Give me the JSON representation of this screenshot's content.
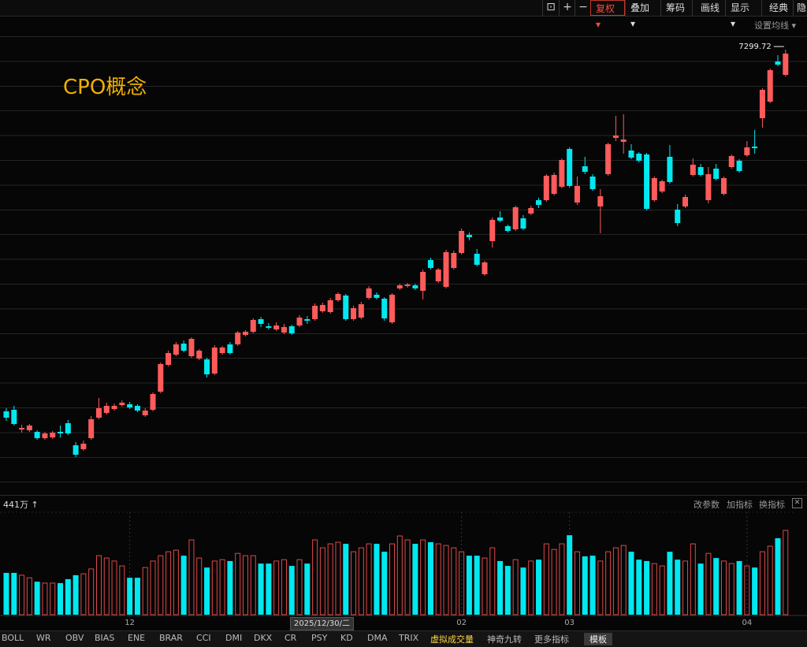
{
  "toolbar": {
    "buttons": [
      "复权",
      "叠加",
      "筹码",
      "画线",
      "显示",
      "经典",
      "隐"
    ],
    "ma_settings": "设置均线"
  },
  "chart_data": [
    {
      "type": "candlestick",
      "title": "CPO概念",
      "cursor_date": "2025/12/30/二",
      "categories": [
        null,
        null,
        null,
        null,
        null,
        null,
        null,
        null,
        null,
        null,
        null,
        null,
        null,
        null,
        null,
        null,
        "12",
        null,
        null,
        null,
        null,
        null,
        null,
        null,
        null,
        null,
        null,
        null,
        null,
        null,
        null,
        null,
        null,
        null,
        null,
        null,
        null,
        null,
        null,
        null,
        null,
        null,
        null,
        null,
        null,
        null,
        null,
        null,
        null,
        null,
        null,
        null,
        null,
        null,
        null,
        null,
        null,
        null,
        null,
        "02",
        null,
        null,
        null,
        null,
        null,
        null,
        null,
        null,
        null,
        null,
        null,
        null,
        null,
        "03",
        null,
        null,
        null,
        null,
        null,
        null,
        null,
        null,
        null,
        null,
        null,
        null,
        null,
        null,
        null,
        null,
        null,
        null,
        null,
        null,
        null,
        null,
        "04",
        null,
        null,
        null,
        null,
        null
      ],
      "open": [
        3628,
        3644,
        3444,
        3436,
        3420,
        3356,
        3364,
        3420,
        3508,
        3284,
        3244,
        3356,
        3564,
        3612,
        3652,
        3692,
        3700,
        3684,
        3588,
        3644,
        3828,
        4100,
        4204,
        4316,
        4188,
        4164,
        4156,
        4012,
        4220,
        4308,
        4308,
        4404,
        4436,
        4564,
        4492,
        4460,
        4428,
        4492,
        4500,
        4564,
        4564,
        4644,
        4636,
        4756,
        4804,
        4564,
        4580,
        4780,
        4812,
        4772,
        4532,
        4876,
        4900,
        4908,
        4852,
        5164,
        4948,
        4892,
        5084,
        5236,
        5420,
        5228,
        5020,
        5356,
        5596,
        5508,
        5476,
        5588,
        5636,
        5772,
        5772,
        5836,
        5908,
        6292,
        5748,
        6116,
        6012,
        5708,
        6036,
        6404,
        6364,
        6276,
        6244,
        6236,
        5772,
        5860,
        6212,
        5676,
        5708,
        6028,
        6108,
        5772,
        6092,
        5836,
        6108,
        6172,
        6228,
        6316,
        6604,
        6772,
        7180,
        7044
      ],
      "high": [
        3660,
        3684,
        3492,
        3500,
        3436,
        3420,
        3428,
        3484,
        3540,
        3316,
        3332,
        3580,
        3764,
        3716,
        3708,
        3740,
        3724,
        3700,
        3660,
        3820,
        4124,
        4244,
        4332,
        4348,
        4380,
        4260,
        4172,
        4300,
        4292,
        4332,
        4444,
        4452,
        4572,
        4588,
        4524,
        4532,
        4516,
        4508,
        4604,
        4596,
        4724,
        4732,
        4780,
        4836,
        4820,
        4700,
        4740,
        4900,
        4836,
        4788,
        4828,
        4924,
        4932,
        4924,
        5068,
        5188,
        5084,
        5268,
        5260,
        5484,
        5444,
        5276,
        5156,
        5596,
        5660,
        5524,
        5716,
        5620,
        5716,
        5796,
        6036,
        6052,
        6196,
        6308,
        6012,
        6212,
        6036,
        5884,
        6356,
        6628,
        6644,
        6340,
        6260,
        6252,
        6012,
        5980,
        6332,
        5732,
        5828,
        6196,
        6140,
        6108,
        6140,
        6012,
        6236,
        6188,
        6372,
        6484,
        6908,
        7108,
        7244,
        7299.72
      ],
      "low": [
        3532,
        3484,
        3412,
        3420,
        3340,
        3340,
        3348,
        3364,
        3388,
        3164,
        3228,
        3340,
        3548,
        3596,
        3636,
        3676,
        3652,
        3620,
        3572,
        3628,
        3812,
        4084,
        4188,
        4228,
        4172,
        4148,
        3972,
        3996,
        4204,
        4204,
        4292,
        4388,
        4420,
        4484,
        4460,
        4444,
        4412,
        4404,
        4484,
        4516,
        4548,
        4628,
        4620,
        4740,
        4548,
        4548,
        4564,
        4764,
        4764,
        4548,
        4516,
        4860,
        4884,
        4860,
        4764,
        5068,
        4932,
        4876,
        5068,
        5220,
        5364,
        5100,
        5004,
        5292,
        5548,
        5444,
        5460,
        5468,
        5620,
        5692,
        5756,
        5820,
        5892,
        5900,
        5724,
        6036,
        5868,
        5436,
        6020,
        6372,
        6244,
        6188,
        6156,
        5668,
        5756,
        5844,
        5940,
        5508,
        5692,
        6012,
        6012,
        5740,
        5972,
        5820,
        6092,
        6052,
        6212,
        6244,
        6508,
        6756,
        7132,
        7028
      ],
      "close": [
        3564,
        3500,
        3460,
        3484,
        3356,
        3404,
        3412,
        3404,
        3404,
        3188,
        3300,
        3548,
        3660,
        3684,
        3684,
        3716,
        3668,
        3636,
        3636,
        3804,
        4108,
        4220,
        4308,
        4244,
        4364,
        4244,
        4004,
        4276,
        4276,
        4220,
        4428,
        4436,
        4556,
        4516,
        4476,
        4500,
        4484,
        4420,
        4580,
        4548,
        4700,
        4708,
        4756,
        4820,
        4564,
        4676,
        4716,
        4876,
        4780,
        4572,
        4812,
        4908,
        4916,
        4876,
        5044,
        5084,
        5068,
        5244,
        5236,
        5460,
        5396,
        5116,
        5140,
        5572,
        5564,
        5460,
        5700,
        5484,
        5692,
        5724,
        6020,
        6028,
        6180,
        5916,
        5916,
        6060,
        5884,
        5812,
        6340,
        6428,
        6388,
        6204,
        6172,
        5684,
        5996,
        5964,
        5956,
        5540,
        5804,
        6132,
        6028,
        6036,
        5988,
        5996,
        6220,
        6068,
        6308,
        6300,
        6892,
        7092,
        7148,
        7260
      ],
      "ylim": [
        2804,
        7644
      ],
      "up_color": "#ff5b5b",
      "down_color": "#00e8f0"
    },
    {
      "type": "bar",
      "values": [
        180,
        180,
        170,
        159,
        142,
        136,
        136,
        136,
        153,
        170,
        176,
        197,
        254,
        244,
        231,
        210,
        159,
        159,
        203,
        231,
        254,
        271,
        278,
        254,
        322,
        244,
        203,
        231,
        237,
        231,
        264,
        254,
        254,
        220,
        220,
        231,
        237,
        210,
        237,
        220,
        322,
        288,
        305,
        312,
        305,
        271,
        288,
        305,
        305,
        271,
        305,
        339,
        322,
        305,
        322,
        312,
        305,
        298,
        288,
        271,
        254,
        254,
        244,
        288,
        231,
        210,
        237,
        203,
        231,
        237,
        305,
        281,
        305,
        342,
        271,
        251,
        254,
        231,
        271,
        288,
        298,
        271,
        237,
        231,
        220,
        210,
        271,
        237,
        231,
        305,
        220,
        264,
        244,
        231,
        220,
        231,
        210,
        203,
        271,
        295,
        329,
        363
      ],
      "ylim": [
        0,
        441
      ],
      "yticks": [
        {
          "value": 441,
          "label": "441万"
        }
      ]
    }
  ],
  "volume_actions": [
    "改参数",
    "加指标",
    "换指标"
  ],
  "indicator_tabs": [
    "BOLL",
    "WR",
    "OBV",
    "BIAS",
    "ENE",
    "BRAR",
    "CCI",
    "DMI",
    "DKX",
    "CR",
    "PSY",
    "KD",
    "DMA",
    "TRIX",
    "虚拟成交量",
    "神奇九转",
    "更多指标",
    "模板"
  ]
}
